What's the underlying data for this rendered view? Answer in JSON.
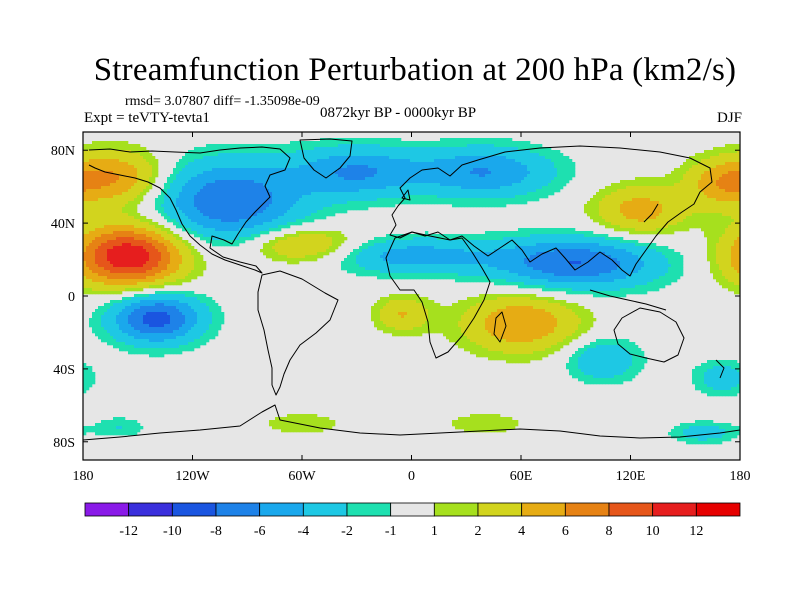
{
  "title": "Streamfunction Perturbation at 200 hPa (km2/s)",
  "stats": "rmsd= 3.07807 diff= -1.35098e-09",
  "expt": "Expt = teVTY-tevta1",
  "period": "0872kyr BP - 0000kyr BP",
  "season": "DJF",
  "axes": {
    "lon_ticks": [
      {
        "lon": -180,
        "label": "180"
      },
      {
        "lon": -120,
        "label": "120W"
      },
      {
        "lon": -60,
        "label": "60W"
      },
      {
        "lon": 0,
        "label": "0"
      },
      {
        "lon": 60,
        "label": "60E"
      },
      {
        "lon": 120,
        "label": "120E"
      },
      {
        "lon": 180,
        "label": "180"
      }
    ],
    "lat_ticks": [
      {
        "lat": 80,
        "label": "80N"
      },
      {
        "lat": 40,
        "label": "40N"
      },
      {
        "lat": 0,
        "label": "0"
      },
      {
        "lat": -40,
        "label": "40S"
      },
      {
        "lat": -80,
        "label": "80S"
      }
    ]
  },
  "colorbar": {
    "boundaries": [
      "-12",
      "-10",
      "-8",
      "-6",
      "-4",
      "-2",
      "-1",
      "1",
      "2",
      "4",
      "6",
      "8",
      "10",
      "12"
    ],
    "colors": [
      "#8a1ae8",
      "#3a2fdc",
      "#1a55e0",
      "#1e82e8",
      "#1aa8ec",
      "#1ec8e4",
      "#1ee0b0",
      "#e6e6e6",
      "#a6e01e",
      "#d2d41e",
      "#e6ac14",
      "#e68214",
      "#e6561a",
      "#e61e1e",
      "#e60000"
    ]
  },
  "anomalies": [
    {
      "lon": -155,
      "lat": 22,
      "rx": 30,
      "ry": 17,
      "amp": 12
    },
    {
      "lon": -140,
      "lat": -12,
      "rx": 25,
      "ry": 14,
      "amp": -9
    },
    {
      "lon": -100,
      "lat": 52,
      "rx": 40,
      "ry": 22,
      "amp": -8
    },
    {
      "lon": -30,
      "lat": 68,
      "rx": 35,
      "ry": 14,
      "amp": -6
    },
    {
      "lon": 40,
      "lat": 68,
      "rx": 38,
      "ry": 14,
      "amp": -6
    },
    {
      "lon": 90,
      "lat": 18,
      "rx": 45,
      "ry": 14,
      "amp": -8
    },
    {
      "lon": 0,
      "lat": 22,
      "rx": 45,
      "ry": 10,
      "amp": -5
    },
    {
      "lon": -60,
      "lat": 28,
      "rx": 30,
      "ry": 10,
      "amp": 5
    },
    {
      "lon": -160,
      "lat": 65,
      "rx": 25,
      "ry": 15,
      "amp": 6
    },
    {
      "lon": 125,
      "lat": 47,
      "rx": 25,
      "ry": 14,
      "amp": 5
    },
    {
      "lon": 170,
      "lat": 62,
      "rx": 20,
      "ry": 14,
      "amp": 5
    },
    {
      "lon": 60,
      "lat": -15,
      "rx": 32,
      "ry": 16,
      "amp": 6
    },
    {
      "lon": -5,
      "lat": -10,
      "rx": 15,
      "ry": 10,
      "amp": 4
    },
    {
      "lon": 105,
      "lat": -35,
      "rx": 20,
      "ry": 12,
      "amp": -4
    },
    {
      "lon": 170,
      "lat": -45,
      "rx": 16,
      "ry": 10,
      "amp": -3
    },
    {
      "lon": -60,
      "lat": -70,
      "rx": 22,
      "ry": 6,
      "amp": 2
    },
    {
      "lon": 40,
      "lat": -70,
      "rx": 22,
      "ry": 6,
      "amp": 2
    },
    {
      "lon": 160,
      "lat": -75,
      "rx": 18,
      "ry": 6,
      "amp": -3
    },
    {
      "lon": -160,
      "lat": -72,
      "rx": 15,
      "ry": 6,
      "amp": -2
    }
  ]
}
